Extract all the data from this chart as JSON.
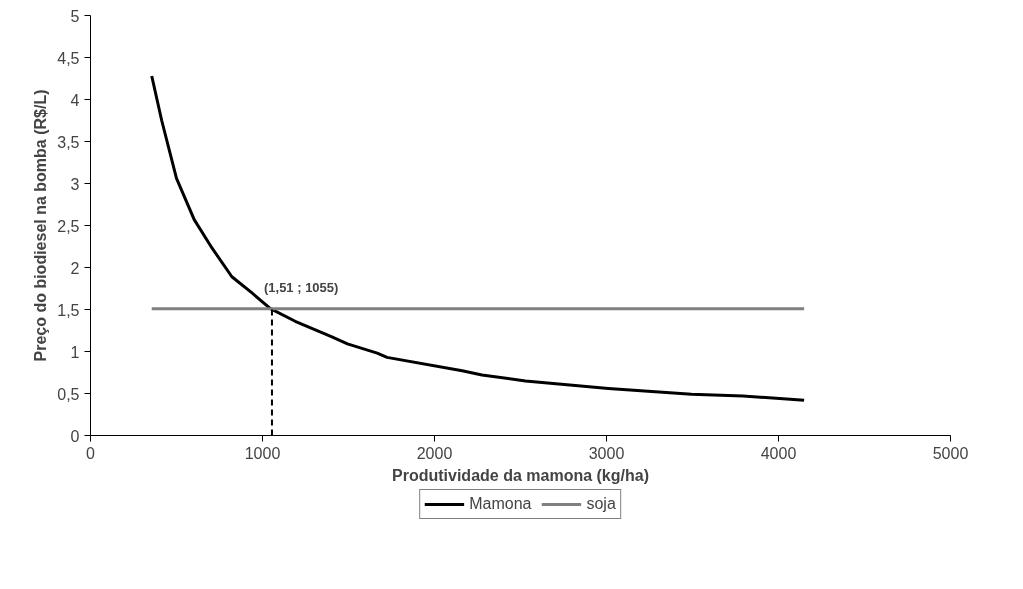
{
  "chart_data": {
    "type": "line",
    "xlabel": "Produtividade da mamona (kg/ha)",
    "ylabel": "Preço do biodiesel na bomba (R$/L)",
    "xlim": [
      0,
      5000
    ],
    "xticks": [
      0,
      1000,
      2000,
      3000,
      4000,
      5000
    ],
    "ylim": [
      0,
      5
    ],
    "yticks": [
      0,
      {
        "value": 0.5,
        "label": "0,5"
      },
      1,
      {
        "value": 1.5,
        "label": "1,5"
      },
      2,
      {
        "value": 2.5,
        "label": "2,5"
      },
      3,
      {
        "value": 3.5,
        "label": "3,5"
      },
      4,
      {
        "value": 4.5,
        "label": "4,5"
      },
      5
    ],
    "grid": false,
    "legend": "bottom",
    "marker": "none",
    "series": [
      {
        "name": "Mamona",
        "color": "#000000",
        "x": [
          356,
          414,
          500,
          603,
          707,
          822,
          937,
          1046,
          1190,
          1397,
          1494,
          1667,
          1724,
          2161,
          2276,
          2529,
          3011,
          3494,
          3793,
          4149
        ],
        "values": [
          4.28,
          3.75,
          3.06,
          2.57,
          2.23,
          1.89,
          1.7,
          1.51,
          1.36,
          1.18,
          1.09,
          0.98,
          0.93,
          0.77,
          0.72,
          0.65,
          0.56,
          0.49,
          0.47,
          0.42
        ]
      },
      {
        "name": "soja",
        "color": "#808080",
        "x": [
          356,
          4149
        ],
        "values": [
          1.51,
          1.51
        ]
      },
      {
        "color": "#000000",
        "line_style": "dashed",
        "x": [
          1055,
          1055
        ],
        "values": [
          0,
          1.51
        ]
      }
    ],
    "annotations": [
      {
        "text": "(1,51 ; 1055)",
        "x": 1055,
        "y": 1.51
      }
    ]
  }
}
